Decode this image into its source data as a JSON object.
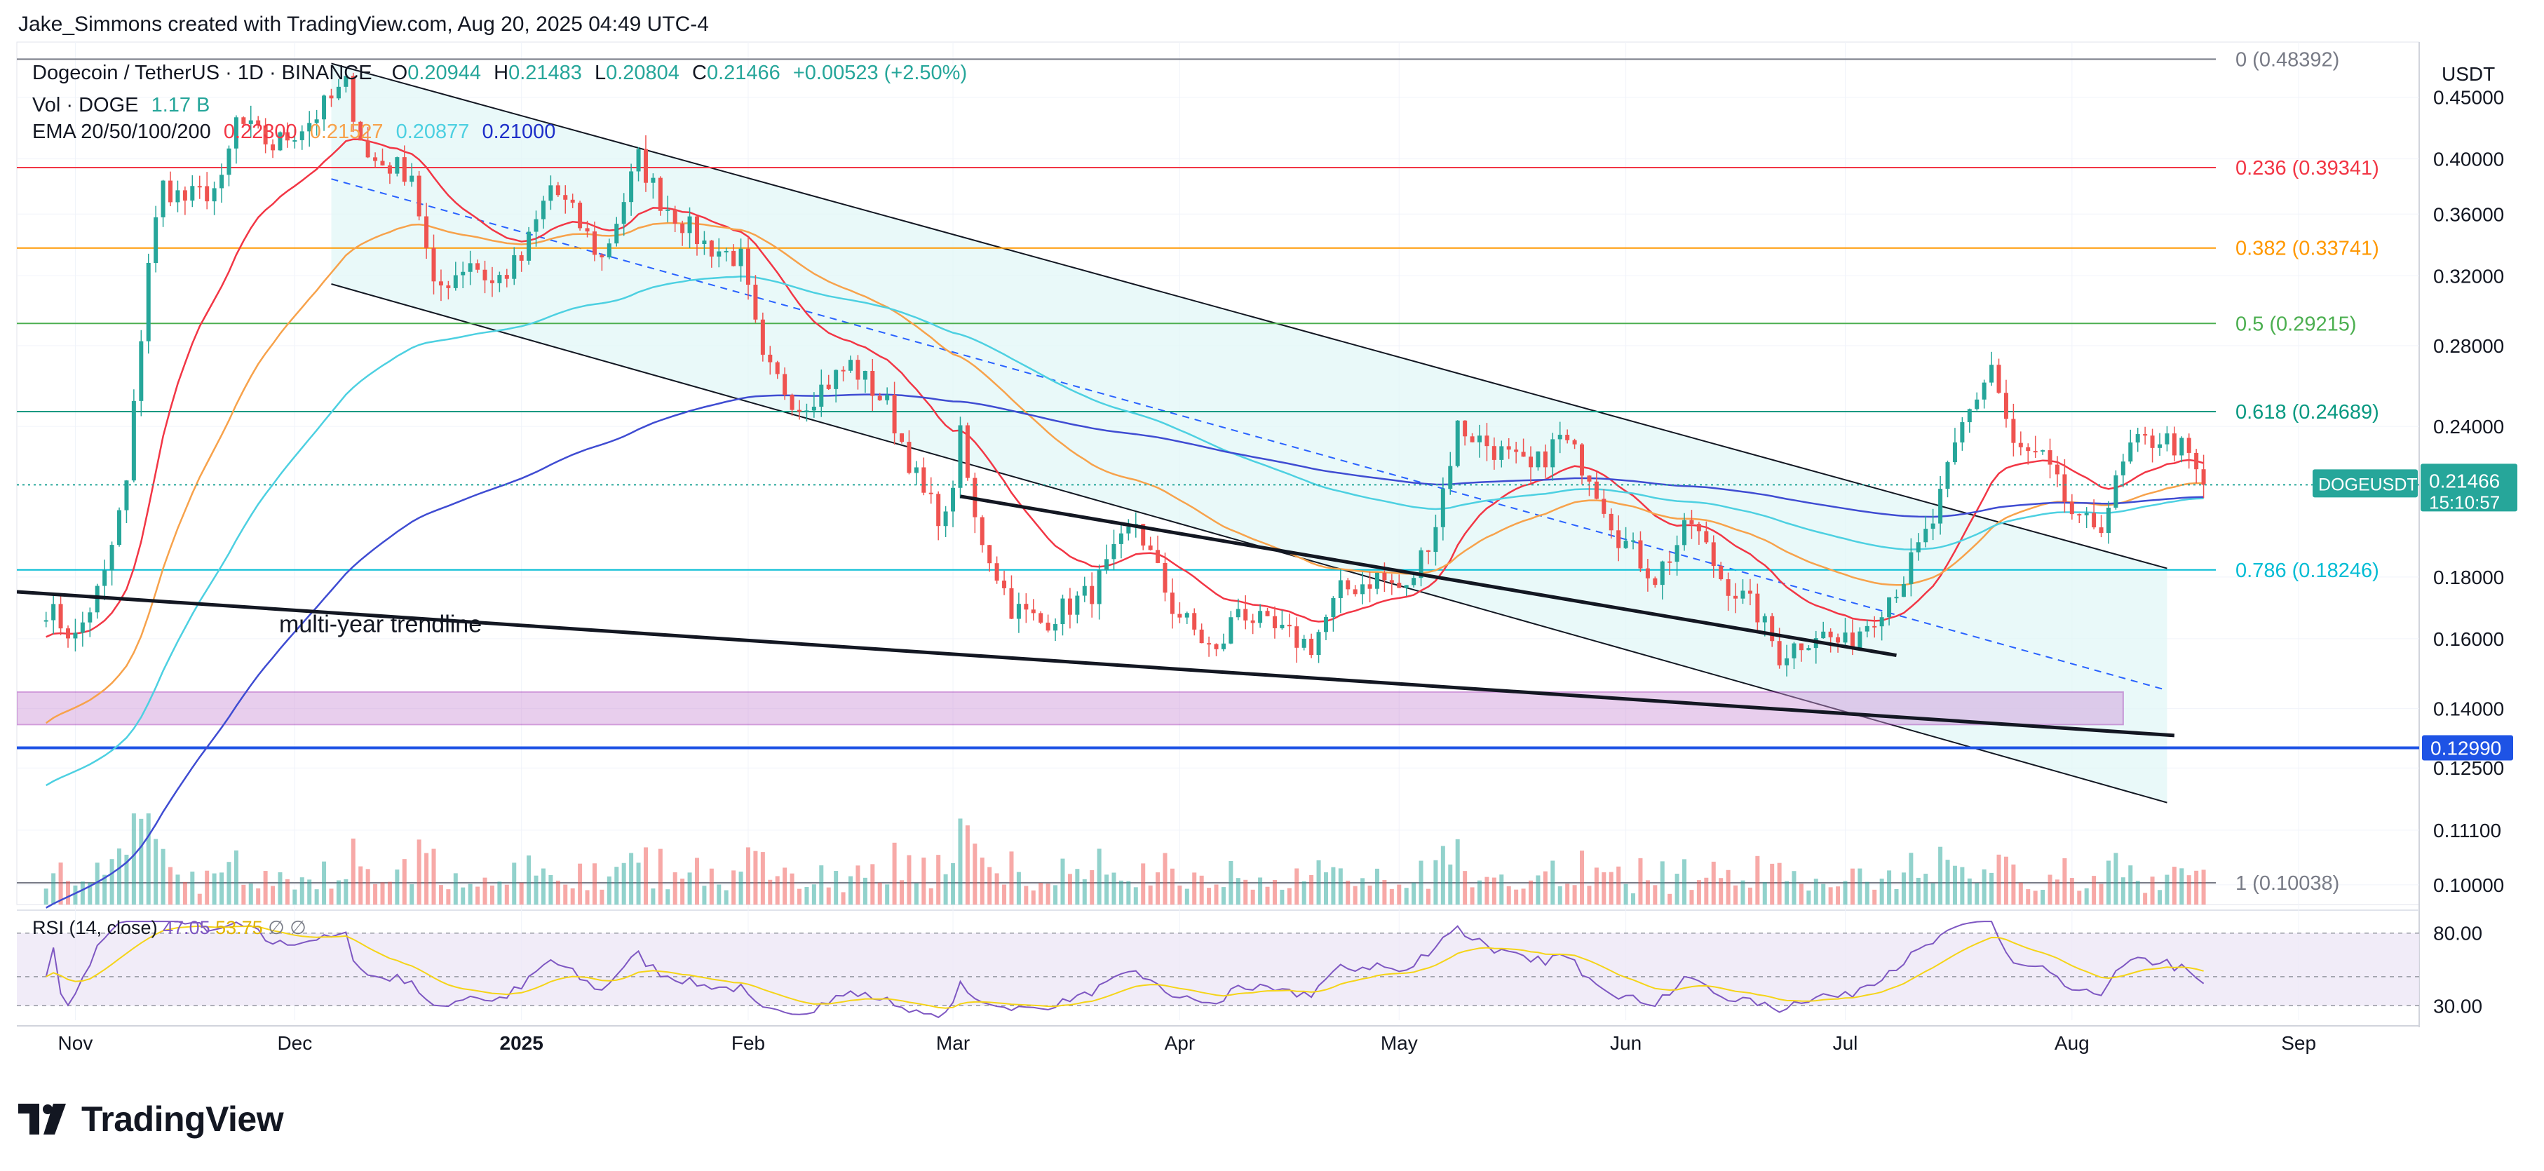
{
  "credit": "Jake_Simmons created with TradingView.com, Aug 20, 2025 04:49 UTC-4",
  "header": {
    "symbol": "Dogecoin / TetherUS · 1D · BINANCE",
    "o_label": "O",
    "o_value": "0.20944",
    "h_label": "H",
    "h_value": "0.21483",
    "l_label": "L",
    "l_value": "0.20804",
    "c_label": "C",
    "c_value": "0.21466",
    "change": "+0.00523 (+2.50%)",
    "vol_label": "Vol · DOGE",
    "vol_value": "1.17 B",
    "ema_label": "EMA 20/50/100/200",
    "ema_values": [
      "0.22300",
      "0.21527",
      "0.20877",
      "0.21000"
    ]
  },
  "currency_label": "USDT",
  "brand": "TradingView",
  "colors": {
    "up": "#26a69a",
    "down": "#ef5350",
    "ema20": "#f23645",
    "ema50": "#f7a24b",
    "ema100": "#4dd0e1",
    "ema200": "#3f4cd2",
    "fib_0": "#787b86",
    "fib_236": "#f23645",
    "fib_382": "#ff9800",
    "fib_5": "#4caf50",
    "fib_618": "#089981",
    "fib_786": "#00bcd4",
    "fib_1": "#787b86",
    "support": "#1e53e5",
    "zone": "#ce93d8",
    "channel_fill": "#e0f7f7",
    "rsi": "#7e57c2",
    "rsi_ma": "#f5d418"
  },
  "chart_data": {
    "type": "candlestick",
    "title": "Dogecoin / TetherUS · 1D · BINANCE",
    "yscale": "log",
    "ylim": [
      0.0963,
      0.5
    ],
    "x_ticks": [
      "Nov",
      "Dec",
      "2025",
      "Feb",
      "Mar",
      "Apr",
      "May",
      "Jun",
      "Jul",
      "Aug",
      "Sep"
    ],
    "y_ticks": [
      0.45,
      0.4,
      0.36,
      0.32,
      0.28,
      0.24,
      0.18,
      0.16,
      0.14,
      0.125,
      0.111,
      0.1
    ],
    "y_tick_labels": [
      "0.45000",
      "0.40000",
      "0.36000",
      "0.32000",
      "0.28000",
      "0.24000",
      "0.18000",
      "0.16000",
      "0.14000",
      "0.12500",
      "0.11100",
      "0.10000"
    ],
    "last_price": {
      "symbol": "DOGEUSDT",
      "value": "0.21466",
      "countdown": "15:10:57"
    },
    "support_level": {
      "value": 0.1299,
      "label": "0.12990"
    },
    "fib_levels": [
      {
        "ratio": "0",
        "price": 0.48392,
        "label": "0 (0.48392)",
        "color": "#787b86"
      },
      {
        "ratio": "0.236",
        "price": 0.39341,
        "label": "0.236 (0.39341)",
        "color": "#f23645"
      },
      {
        "ratio": "0.382",
        "price": 0.33741,
        "label": "0.382 (0.33741)",
        "color": "#ff9800"
      },
      {
        "ratio": "0.5",
        "price": 0.29215,
        "label": "0.5 (0.29215)",
        "color": "#4caf50"
      },
      {
        "ratio": "0.618",
        "price": 0.24689,
        "label": "0.618 (0.24689)",
        "color": "#089981"
      },
      {
        "ratio": "0.786",
        "price": 0.18246,
        "label": "0.786 (0.18246)",
        "color": "#00bcd4"
      },
      {
        "ratio": "1",
        "price": 0.10038,
        "label": "1 (0.10038)",
        "color": "#787b86"
      }
    ],
    "annotations": [
      {
        "text": "multi-year trendline"
      }
    ],
    "close_anchors": [
      [
        "2024-10-28",
        0.17
      ],
      [
        "2024-11-01",
        0.16
      ],
      [
        "2024-11-05",
        0.18
      ],
      [
        "2024-11-08",
        0.215
      ],
      [
        "2024-11-11",
        0.33
      ],
      [
        "2024-11-13",
        0.38
      ],
      [
        "2024-11-16",
        0.37
      ],
      [
        "2024-11-21",
        0.38
      ],
      [
        "2024-11-23",
        0.43
      ],
      [
        "2024-11-28",
        0.41
      ],
      [
        "2024-12-03",
        0.43
      ],
      [
        "2024-12-08",
        0.46
      ],
      [
        "2024-12-11",
        0.4
      ],
      [
        "2024-12-17",
        0.39
      ],
      [
        "2024-12-20",
        0.31
      ],
      [
        "2024-12-25",
        0.33
      ],
      [
        "2024-12-28",
        0.315
      ],
      [
        "2025-01-01",
        0.33
      ],
      [
        "2025-01-05",
        0.38
      ],
      [
        "2025-01-08",
        0.36
      ],
      [
        "2025-01-12",
        0.33
      ],
      [
        "2025-01-17",
        0.4
      ],
      [
        "2025-01-20",
        0.37
      ],
      [
        "2025-01-26",
        0.34
      ],
      [
        "2025-01-31",
        0.33
      ],
      [
        "2025-02-03",
        0.27
      ],
      [
        "2025-02-08",
        0.25
      ],
      [
        "2025-02-15",
        0.27
      ],
      [
        "2025-02-20",
        0.25
      ],
      [
        "2025-02-25",
        0.21
      ],
      [
        "2025-02-28",
        0.2
      ],
      [
        "2025-03-02",
        0.235
      ],
      [
        "2025-03-04",
        0.2
      ],
      [
        "2025-03-09",
        0.17
      ],
      [
        "2025-03-13",
        0.165
      ],
      [
        "2025-03-20",
        0.175
      ],
      [
        "2025-03-26",
        0.2
      ],
      [
        "2025-03-31",
        0.17
      ],
      [
        "2025-04-06",
        0.155
      ],
      [
        "2025-04-09",
        0.17
      ],
      [
        "2025-04-13",
        0.163
      ],
      [
        "2025-04-19",
        0.158
      ],
      [
        "2025-04-23",
        0.175
      ],
      [
        "2025-04-28",
        0.18
      ],
      [
        "2025-05-02",
        0.175
      ],
      [
        "2025-05-06",
        0.2
      ],
      [
        "2025-05-09",
        0.24
      ],
      [
        "2025-05-14",
        0.23
      ],
      [
        "2025-05-19",
        0.22
      ],
      [
        "2025-05-23",
        0.235
      ],
      [
        "2025-05-27",
        0.22
      ],
      [
        "2025-05-31",
        0.195
      ],
      [
        "2025-06-05",
        0.18
      ],
      [
        "2025-06-10",
        0.2
      ],
      [
        "2025-06-14",
        0.18
      ],
      [
        "2025-06-19",
        0.168
      ],
      [
        "2025-06-22",
        0.155
      ],
      [
        "2025-06-27",
        0.162
      ],
      [
        "2025-07-01",
        0.158
      ],
      [
        "2025-07-05",
        0.168
      ],
      [
        "2025-07-09",
        0.18
      ],
      [
        "2025-07-13",
        0.2
      ],
      [
        "2025-07-17",
        0.24
      ],
      [
        "2025-07-21",
        0.27
      ],
      [
        "2025-07-24",
        0.23
      ],
      [
        "2025-07-28",
        0.225
      ],
      [
        "2025-08-02",
        0.198
      ],
      [
        "2025-08-05",
        0.2
      ],
      [
        "2025-08-09",
        0.23
      ],
      [
        "2025-08-13",
        0.235
      ],
      [
        "2025-08-16",
        0.23
      ],
      [
        "2025-08-19",
        0.21466
      ]
    ],
    "rsi": {
      "label": "RSI (14, close)",
      "value": "47.05",
      "ma_value": "53.75",
      "extra": "∅  ∅",
      "upper_label": "80.00",
      "lower_label": "30.00",
      "ylim": [
        20,
        90
      ]
    }
  }
}
